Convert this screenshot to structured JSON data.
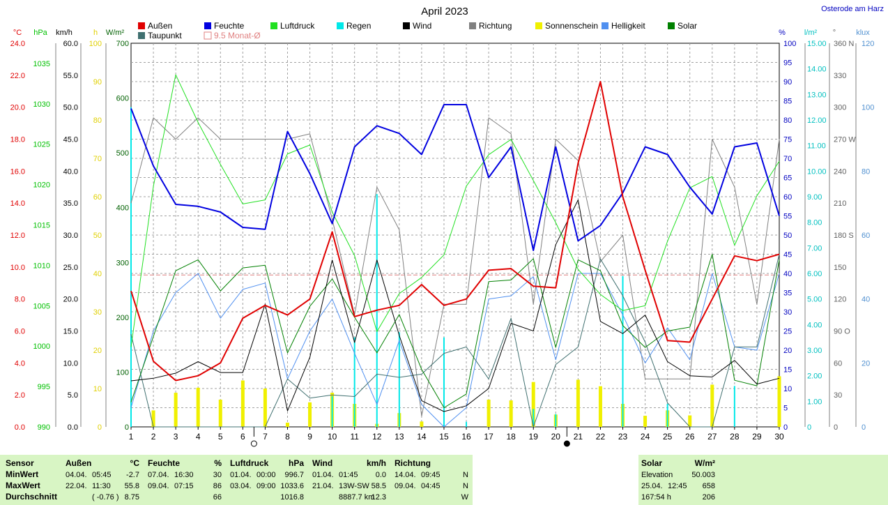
{
  "chart_data": {
    "type": "line",
    "title": "April 2023",
    "location": "Osterode am Harz",
    "x": [
      1,
      2,
      3,
      4,
      5,
      6,
      7,
      8,
      9,
      10,
      11,
      12,
      13,
      14,
      15,
      16,
      17,
      18,
      19,
      20,
      21,
      22,
      23,
      24,
      25,
      26,
      27,
      28,
      29,
      30
    ],
    "legend": [
      {
        "name": "Außen",
        "color": "#e00000"
      },
      {
        "name": "Feuchte",
        "color": "#0000e0"
      },
      {
        "name": "Luftdruck",
        "color": "#20e020"
      },
      {
        "name": "Regen",
        "color": "#00e8e8"
      },
      {
        "name": "Wind",
        "color": "#000000"
      },
      {
        "name": "Richtung",
        "color": "#808080"
      },
      {
        "name": "Sonnenschein",
        "color": "#f0f000"
      },
      {
        "name": "Helligkeit",
        "color": "#5090f0"
      },
      {
        "name": "Solar",
        "color": "#008000"
      },
      {
        "name": "Taupunkt",
        "color": "#407070"
      },
      {
        "name": "9.5 Monat-Ø",
        "color": "#e08080"
      }
    ],
    "axes": {
      "temp": {
        "unit": "°C",
        "min": 0,
        "max": 24,
        "ticks": [
          "0.0",
          "2.0",
          "4.0",
          "6.0",
          "8.0",
          "10.0",
          "12.0",
          "14.0",
          "16.0",
          "18.0",
          "20.0",
          "22.0",
          "24.0"
        ],
        "color": "#e00000"
      },
      "pressure": {
        "unit": "hPa",
        "min": 990,
        "max": 1037.5,
        "ticks": [
          "990",
          "995",
          "1000",
          "1005",
          "1010",
          "1015",
          "1020",
          "1025",
          "1030",
          "1035"
        ],
        "color": "#00c000"
      },
      "wind": {
        "unit": "km/h",
        "min": 0,
        "max": 60,
        "ticks": [
          "0.0",
          "5.0",
          "10.0",
          "15.0",
          "20.0",
          "25.0",
          "30.0",
          "35.0",
          "40.0",
          "45.0",
          "50.0",
          "55.0",
          "60.0"
        ],
        "color": "#000000"
      },
      "sun": {
        "unit": "h",
        "min": 0,
        "max": 100,
        "ticks": [
          "0",
          "10",
          "20",
          "30",
          "40",
          "50",
          "60",
          "70",
          "80",
          "90",
          "100"
        ],
        "color": "#e0d000"
      },
      "solar": {
        "unit": "W/m²",
        "min": 0,
        "max": 700,
        "ticks": [
          "0",
          "100",
          "200",
          "300",
          "400",
          "500",
          "600",
          "700"
        ],
        "color": "#006000"
      },
      "humidity": {
        "unit": "%",
        "min": 0,
        "max": 100,
        "ticks": [
          "0",
          "5",
          "10",
          "15",
          "20",
          "25",
          "30",
          "35",
          "40",
          "45",
          "50",
          "55",
          "60",
          "65",
          "70",
          "75",
          "80",
          "85",
          "90",
          "95",
          "100"
        ],
        "color": "#0000c0"
      },
      "rain": {
        "unit": "l/m²",
        "min": 0,
        "max": 15,
        "ticks": [
          "0",
          "1.00",
          "2.00",
          "3.00",
          "4.00",
          "5.00",
          "6.00",
          "7.00",
          "8.00",
          "9.00",
          "10.00",
          "11.00",
          "12.00",
          "13.00",
          "14.00",
          "15.00"
        ],
        "color": "#00c0c0"
      },
      "direction": {
        "unit": "°",
        "min": 0,
        "max": 360,
        "ticks": [
          "0",
          "30",
          "60",
          "90 O",
          "120",
          "150",
          "180 S",
          "210",
          "240",
          "270 W",
          "300",
          "330",
          "360 N"
        ],
        "color": "#606060"
      },
      "lux": {
        "unit": "klux",
        "min": 0,
        "max": 120,
        "ticks": [
          "0",
          "20",
          "40",
          "60",
          "80",
          "100",
          "120"
        ],
        "color": "#5090d0"
      }
    },
    "series": [
      {
        "name": "Außen",
        "axis": "temp",
        "values": [
          8.5,
          4.1,
          2.9,
          3.2,
          4.0,
          6.8,
          7.6,
          7.0,
          8.0,
          12.2,
          6.9,
          7.3,
          7.6,
          8.9,
          7.6,
          8.0,
          9.8,
          9.9,
          8.8,
          8.7,
          16.5,
          21.6,
          14.4,
          9.8,
          5.4,
          5.3,
          8.0,
          10.7,
          10.4,
          10.8
        ]
      },
      {
        "name": "Feuchte",
        "axis": "humidity",
        "values": [
          83,
          68,
          58,
          57.5,
          56,
          52,
          51.5,
          77,
          66,
          53,
          73,
          78.5,
          76.5,
          71,
          84,
          84,
          65,
          73,
          46,
          73,
          48.5,
          52.5,
          61,
          73,
          71,
          62.5,
          55.5,
          73,
          74,
          55
        ]
      },
      {
        "name": "Luftdruck",
        "axis": "pressure",
        "values": [
          999.9,
          1019.8,
          1033.6,
          1027.7,
          1022.5,
          1017.6,
          1018.1,
          1023.8,
          1024.9,
          1016.6,
          1011.2,
          1001.8,
          1006.5,
          1008.5,
          1011.3,
          1019.8,
          1023.7,
          1025.6,
          1020.5,
          1015.3,
          1009.5,
          1006.4,
          1004.4,
          1005.0,
          1013.0,
          1019.6,
          1021.0,
          1012.5,
          1018.6,
          1022.9
        ]
      },
      {
        "name": "Regen",
        "axis": "rain",
        "values": [
          12.5,
          0,
          0,
          0,
          0,
          0,
          0,
          0,
          0,
          1.2,
          3.5,
          9.1,
          3.7,
          0,
          3.5,
          0.2,
          0,
          0,
          0.7,
          0.5,
          0,
          0,
          5.9,
          0,
          0.9,
          0,
          0,
          1.6,
          0,
          0
        ]
      },
      {
        "name": "Wind",
        "axis": "wind",
        "values": [
          7.2,
          7.6,
          8.4,
          10.2,
          8.5,
          8.5,
          19.2,
          2.5,
          10.9,
          26.1,
          13.2,
          26.1,
          14.3,
          4.1,
          2.4,
          3.3,
          6.0,
          16.2,
          15.0,
          28.5,
          35.5,
          16.5,
          14.6,
          17.5,
          10.2,
          8.0,
          7.8,
          10.4,
          6.7,
          7.6
        ]
      },
      {
        "name": "Richtung",
        "axis": "direction",
        "values": [
          210,
          290,
          270,
          290,
          270,
          270,
          270,
          270,
          275,
          195,
          105,
          225,
          185,
          10,
          115,
          115,
          290,
          275,
          115,
          270,
          250,
          155,
          180,
          45,
          45,
          45,
          270,
          225,
          115,
          270
        ]
      },
      {
        "name": "Sonnenschein",
        "axis": "sun",
        "values": [
          0,
          4.3,
          8.9,
          10.2,
          7.1,
          12.1,
          10.0,
          1.1,
          6.4,
          8.9,
          6.0,
          0.8,
          3.6,
          1.4,
          0,
          0,
          7.1,
          6.9,
          11.7,
          3.2,
          12.3,
          10.6,
          6.0,
          2.9,
          4.3,
          3.0,
          11.0,
          0,
          0,
          13.2
        ]
      },
      {
        "name": "Helligkeit",
        "axis": "lux",
        "values": [
          6,
          30,
          42,
          48,
          34,
          43,
          45,
          15,
          30,
          40,
          23,
          7,
          27,
          7,
          0,
          6,
          40,
          41,
          47,
          21,
          48,
          48,
          35,
          20,
          31,
          21,
          48,
          25,
          24,
          48
        ]
      },
      {
        "name": "Solar",
        "axis": "solar",
        "values": [
          45,
          165,
          285,
          305,
          248,
          290,
          295,
          135,
          220,
          270,
          200,
          135,
          205,
          105,
          35,
          60,
          265,
          268,
          307,
          145,
          305,
          285,
          185,
          145,
          175,
          182,
          315,
          85,
          75,
          305
        ]
      },
      {
        "name": "Taupunkt",
        "axis": "temp",
        "values": [
          5.8,
          0,
          0,
          0,
          0,
          0,
          0,
          3.0,
          1.8,
          2.0,
          1.9,
          3.3,
          3.1,
          3.3,
          4.6,
          5.0,
          3.0,
          6.8,
          0,
          3.9,
          5.0,
          10.5,
          8.2,
          5.3,
          1.5,
          0,
          0,
          5.0,
          5.0,
          10.8
        ]
      }
    ],
    "monthly_mean": {
      "name": "9.5 Monat-Ø",
      "value": 9.5
    },
    "moon_phase_days": [
      6.5,
      20.5
    ],
    "summary": {
      "rows": [
        "MinWert",
        "MaxWert",
        "Durchschnitt"
      ],
      "columns": [
        {
          "header": "Sensor",
          "unit": ""
        },
        {
          "header": "Außen",
          "unit": "°C",
          "cells": [
            [
              "04.04.",
              "05:45",
              "-2.7"
            ],
            [
              "22.04.",
              "11:30",
              "55.8"
            ],
            [
              "",
              "( -0.76 )",
              "8.75"
            ]
          ]
        },
        {
          "header": "Feuchte",
          "unit": "%",
          "cells": [
            [
              "07.04.",
              "16:30",
              "30"
            ],
            [
              "09.04.",
              "07:15",
              "86"
            ],
            [
              "",
              "",
              "66"
            ]
          ]
        },
        {
          "header": "Luftdruck",
          "unit": "hPa",
          "cells": [
            [
              "01.04.",
              "00:00",
              "996.7"
            ],
            [
              "03.04.",
              "09:00",
              "1033.6"
            ],
            [
              "",
              "",
              "1016.8"
            ]
          ]
        },
        {
          "header": "Wind",
          "unit": "km/h",
          "cells": [
            [
              "01.04.",
              "01:45",
              "0.0"
            ],
            [
              "21.04.",
              "13W-SW",
              "58.5"
            ],
            [
              "",
              "8887.7 km",
              "12.3"
            ]
          ]
        },
        {
          "header": "Richtung",
          "unit": "",
          "cells": [
            [
              "14.04.",
              "09:45",
              "N"
            ],
            [
              "09.04.",
              "04:45",
              "N"
            ],
            [
              "",
              "",
              "W"
            ]
          ]
        },
        {
          "header": "Solar",
          "unit": "W/m²",
          "cells": [
            [
              "Elevation",
              "",
              "50.003"
            ],
            [
              "25.04.",
              "12:45",
              "658"
            ],
            [
              "167:54 h",
              "",
              "206"
            ]
          ]
        }
      ]
    }
  }
}
